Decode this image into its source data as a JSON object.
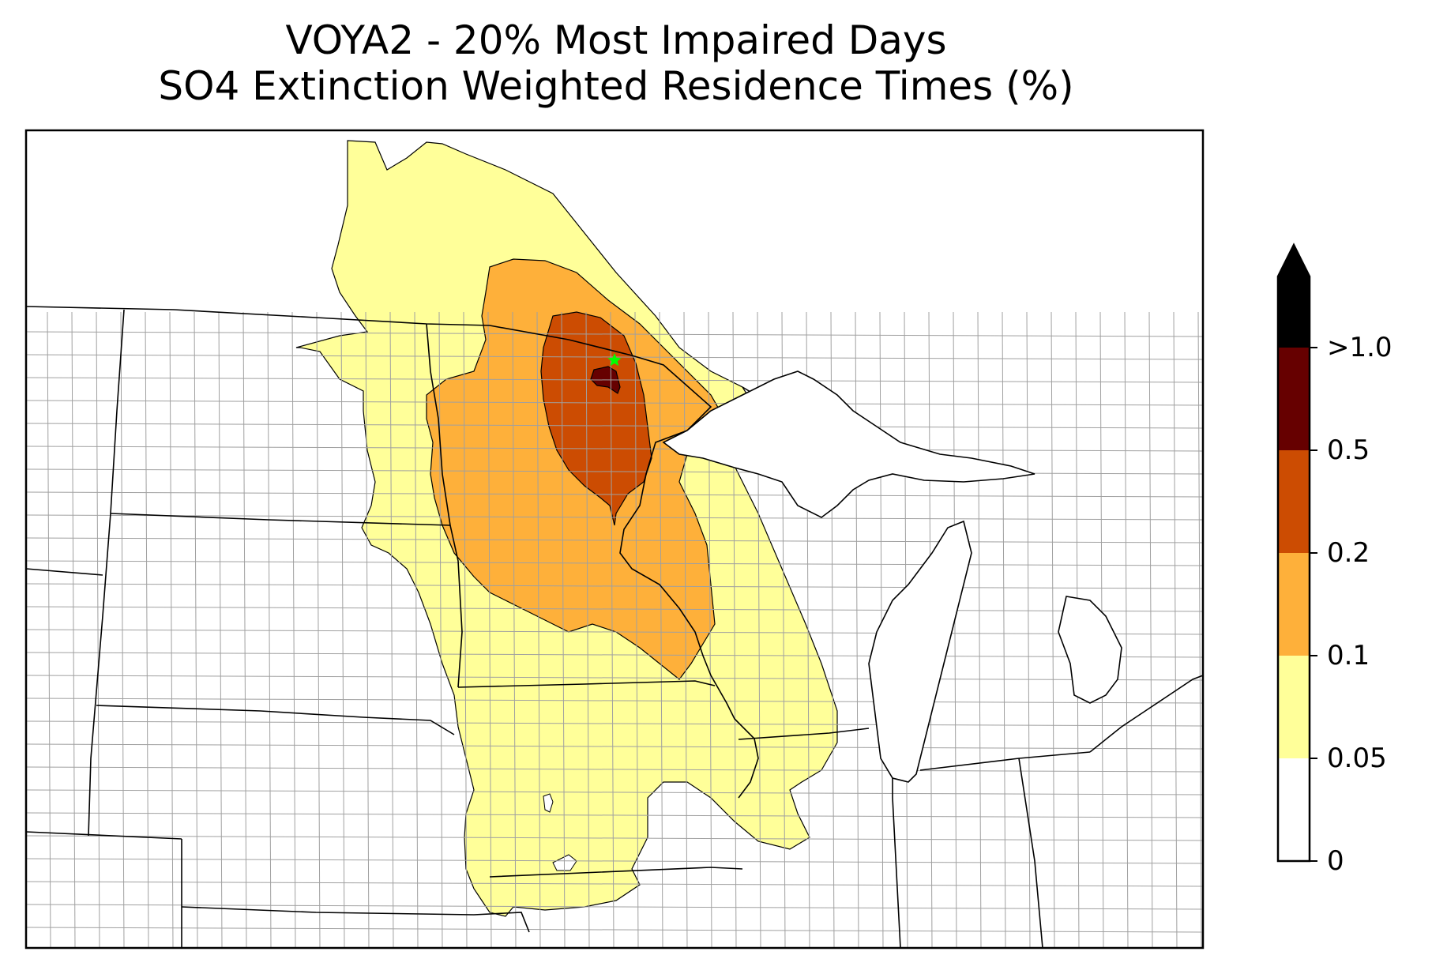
{
  "title": {
    "line1": "VOYA2 - 20% Most Impaired Days",
    "line2": "SO4 Extinction Weighted Residence Times (%)"
  },
  "colorbar": {
    "extend": "max",
    "bins": [
      {
        "from": "0",
        "to": "0.05",
        "color": "#ffffff"
      },
      {
        "from": "0.05",
        "to": "0.1",
        "color": "#ffff99"
      },
      {
        "from": "0.1",
        "to": "0.2",
        "color": "#feb03a"
      },
      {
        "from": "0.2",
        "to": "0.5",
        "color": "#cc4c02"
      },
      {
        "from": "0.5",
        "to": ">1.0",
        "color": "#660000"
      },
      {
        "from": ">1.0",
        "to": "max",
        "color": "#000000"
      }
    ],
    "tick_labels": [
      "0",
      "0.05",
      "0.1",
      "0.2",
      "0.5",
      ">1.0"
    ]
  },
  "map": {
    "receptor_marker": {
      "label": "VOYA2",
      "symbol": "star",
      "color": "#00ff00"
    },
    "boundary_color": "#000000",
    "county_line_color": "#a0a0a0",
    "lake_fill": "#ffffff"
  }
}
